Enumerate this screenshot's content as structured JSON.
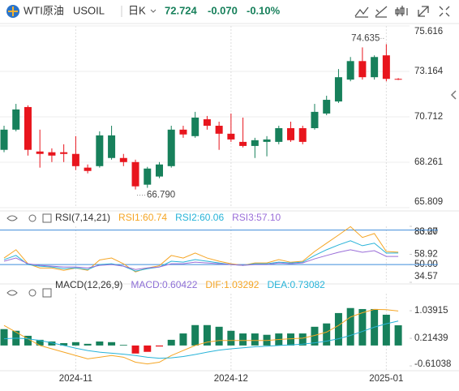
{
  "header": {
    "name": "WTI原油",
    "symbol": "USOIL",
    "period": "日K",
    "price": "72.724",
    "change": "-0.070",
    "change_pct": "-0.10%"
  },
  "chart_data": [
    {
      "type": "candlestick",
      "open": [
        68.93,
        70.02,
        71.24,
        68.84,
        68.8,
        68.8,
        68.71,
        67.97,
        68.05,
        68.49,
        68.49,
        68.27,
        67.05,
        67.49,
        68.05,
        70.02,
        69.67,
        70.58,
        70.23,
        69.8,
        69.36,
        69.14,
        69.36,
        69.36,
        70.1,
        70.1,
        70.1,
        70.89,
        71.54,
        72.72,
        73.72,
        72.85,
        74.03,
        72.76
      ],
      "high": [
        70.23,
        71.41,
        71.33,
        70.02,
        69.01,
        69.23,
        69.67,
        68.14,
        69.93,
        70.23,
        68.71,
        68.4,
        68.01,
        68.27,
        70.23,
        70.23,
        70.98,
        70.76,
        70.45,
        70.89,
        70.67,
        69.58,
        69.67,
        70.23,
        70.45,
        70.23,
        71.41,
        71.85,
        73.29,
        73.94,
        74.46,
        74.03,
        74.635,
        72.8
      ],
      "low": [
        68.8,
        69.93,
        68.62,
        67.97,
        68.27,
        68.27,
        67.84,
        67.66,
        67.97,
        68.4,
        68.05,
        66.79,
        66.88,
        67.4,
        67.97,
        69.58,
        69.58,
        70.02,
        68.93,
        69.36,
        69.06,
        68.49,
        68.58,
        69.23,
        69.36,
        69.23,
        70.02,
        70.8,
        71.46,
        72.63,
        72.72,
        72.72,
        72.63,
        72.7
      ],
      "close": [
        70.02,
        71.11,
        68.93,
        68.71,
        68.62,
        68.71,
        68.05,
        67.79,
        69.71,
        69.71,
        68.27,
        66.96,
        67.92,
        68.14,
        70.02,
        69.76,
        70.67,
        70.23,
        69.8,
        69.49,
        69.14,
        69.45,
        69.49,
        70.1,
        69.45,
        69.36,
        70.98,
        71.63,
        72.85,
        73.72,
        72.85,
        73.94,
        72.76,
        72.724
      ],
      "up_color": "#17805b",
      "down_color": "#e8151d",
      "ylim": [
        65.809,
        75.616
      ],
      "yticks": [
        75.616,
        73.164,
        70.712,
        68.261,
        65.809
      ],
      "high_label": {
        "value": 74.635,
        "label": "74.635"
      },
      "low_label": {
        "value": 66.79,
        "label": "66.790"
      },
      "xticks": [
        {
          "value": 6,
          "label": "2024-11"
        },
        {
          "value": 19,
          "label": "2024-12"
        },
        {
          "value": 32,
          "label": "2025-01"
        }
      ],
      "grid": true
    },
    {
      "type": "line",
      "title": "RSI(7,14,21)",
      "series": [
        {
          "name": "RSI1",
          "legend": "RSI1:60.74",
          "color": "#f5a524",
          "values": [
            55.7,
            62.9,
            50.7,
            47,
            47,
            45,
            47,
            45,
            54,
            55.7,
            50.7,
            43.6,
            47,
            49,
            57.9,
            55.7,
            60,
            55.7,
            52.9,
            50.7,
            49.3,
            51.4,
            51.4,
            54.3,
            52,
            52.9,
            61.4,
            68.6,
            75.7,
            83,
            73.6,
            77,
            61.4,
            60.74
          ]
        },
        {
          "name": "RSI2",
          "legend": "RSI2:60.06",
          "color": "#27b3d8",
          "values": [
            54.3,
            58,
            50,
            48.6,
            47.9,
            46.4,
            47.1,
            45.7,
            50,
            50.7,
            48.6,
            44.3,
            46.4,
            47.9,
            52.9,
            52.1,
            54.3,
            52.9,
            51.4,
            50,
            49.3,
            50.7,
            50.7,
            52.1,
            51.4,
            52.1,
            57.9,
            62.9,
            67.1,
            70.7,
            66.4,
            68.6,
            60,
            60.06
          ]
        },
        {
          "name": "RSI3",
          "legend": "RSI3:57.10",
          "color": "#9a6ed8",
          "values": [
            52.9,
            55.7,
            50.7,
            49.3,
            48.6,
            47.9,
            47.9,
            47.1,
            49.3,
            50,
            48.6,
            45.7,
            47.1,
            47.9,
            50.7,
            50.7,
            52.1,
            51.4,
            50.7,
            50,
            49.3,
            50,
            50,
            51.4,
            50.7,
            51.4,
            55,
            57.9,
            60.7,
            62.9,
            60.7,
            62.1,
            57.1,
            57.1
          ]
        }
      ],
      "ylim": [
        34.57,
        83.27
      ],
      "yticks": [
        83.27,
        {
          "value": 80,
          "label": "80.00"
        },
        58.92,
        {
          "value": 50,
          "label": "50.00"
        },
        34.57
      ],
      "hlines": [
        80,
        50
      ],
      "hline_color": "#3f8ddb"
    },
    {
      "type": "combo",
      "title": "MACD(12,26,9)",
      "histogram": {
        "name": "MACD",
        "legend": "MACD:0.60422",
        "color": "#8d6fd6",
        "up_color": "#17805b",
        "down_color": "#e8151d",
        "values": [
          0.49,
          0.44,
          0.29,
          0.17,
          0.12,
          0.07,
          0.1,
          0.05,
          0.12,
          0.1,
          0.02,
          -0.24,
          -0.19,
          -0.03,
          0.17,
          0.36,
          0.61,
          0.61,
          0.56,
          0.44,
          0.36,
          0.36,
          0.32,
          0.36,
          0.36,
          0.36,
          0.56,
          0.66,
          0.97,
          1.12,
          1.09,
          1.09,
          0.92,
          0.60422
        ]
      },
      "series": [
        {
          "name": "DIF",
          "legend": "DIF:1.03292",
          "color": "#f5a524",
          "values": [
            0.6,
            0.4,
            0.2,
            0,
            -0.1,
            -0.2,
            -0.3,
            -0.4,
            -0.35,
            -0.3,
            -0.35,
            -0.5,
            -0.55,
            -0.5,
            -0.3,
            -0.15,
            0,
            0.1,
            0.15,
            0.15,
            0.15,
            0.15,
            0.15,
            0.18,
            0.2,
            0.22,
            0.3,
            0.4,
            0.6,
            0.85,
            0.98,
            1.08,
            1.07,
            1.03292
          ]
        },
        {
          "name": "DEA",
          "legend": "DEA:0.73082",
          "color": "#27b3d8",
          "values": [
            0.2,
            0.22,
            0.2,
            0.15,
            0.08,
            0,
            -0.08,
            -0.15,
            -0.2,
            -0.23,
            -0.26,
            -0.3,
            -0.35,
            -0.38,
            -0.37,
            -0.33,
            -0.27,
            -0.2,
            -0.14,
            -0.1,
            -0.07,
            -0.04,
            -0.02,
            0,
            0.02,
            0.04,
            0.08,
            0.13,
            0.2,
            0.3,
            0.42,
            0.55,
            0.65,
            0.73082
          ]
        }
      ],
      "ylim": [
        -0.73,
        1.55
      ],
      "yticks": [
        1.03915,
        0.21439,
        -0.61038
      ]
    }
  ]
}
